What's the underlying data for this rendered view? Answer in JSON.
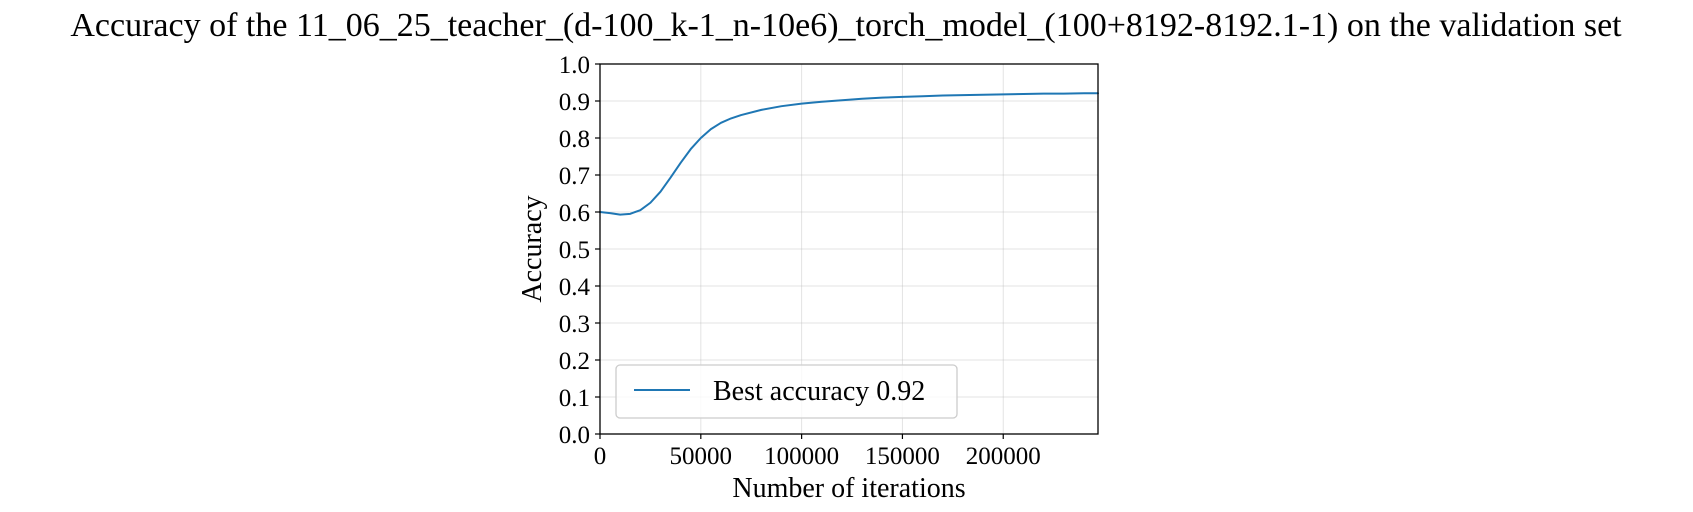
{
  "chart_data": {
    "type": "line",
    "title": "Accuracy of the 11_06_25_teacher_(d-100_k-1_n-10e6)_torch_model_(100+8192-8192.1-1) on the validation set",
    "xlabel": "Number of iterations",
    "ylabel": "Accuracy",
    "xlim": [
      0,
      247000
    ],
    "ylim": [
      0.0,
      1.0
    ],
    "xticks": [
      0,
      50000,
      100000,
      150000,
      200000
    ],
    "xtick_labels": [
      "0",
      "50000",
      "100000",
      "150000",
      "200000"
    ],
    "yticks": [
      0.0,
      0.1,
      0.2,
      0.3,
      0.4,
      0.5,
      0.6,
      0.7,
      0.8,
      0.9,
      1.0
    ],
    "ytick_labels": [
      "0.0",
      "0.1",
      "0.2",
      "0.3",
      "0.4",
      "0.5",
      "0.6",
      "0.7",
      "0.8",
      "0.9",
      "1.0"
    ],
    "grid": true,
    "legend_position": "lower-left",
    "series": [
      {
        "name": "Best accuracy 0.92",
        "color": "#1f77b4",
        "x": [
          0,
          5000,
          10000,
          15000,
          20000,
          25000,
          30000,
          35000,
          40000,
          45000,
          50000,
          55000,
          60000,
          65000,
          70000,
          80000,
          90000,
          100000,
          110000,
          120000,
          130000,
          140000,
          150000,
          160000,
          170000,
          180000,
          190000,
          200000,
          210000,
          220000,
          230000,
          240000,
          247000
        ],
        "y": [
          0.6,
          0.597,
          0.593,
          0.595,
          0.605,
          0.625,
          0.655,
          0.693,
          0.733,
          0.77,
          0.8,
          0.824,
          0.841,
          0.853,
          0.862,
          0.876,
          0.886,
          0.893,
          0.898,
          0.902,
          0.906,
          0.909,
          0.911,
          0.913,
          0.915,
          0.916,
          0.917,
          0.918,
          0.919,
          0.92,
          0.92,
          0.921,
          0.921
        ]
      }
    ]
  }
}
